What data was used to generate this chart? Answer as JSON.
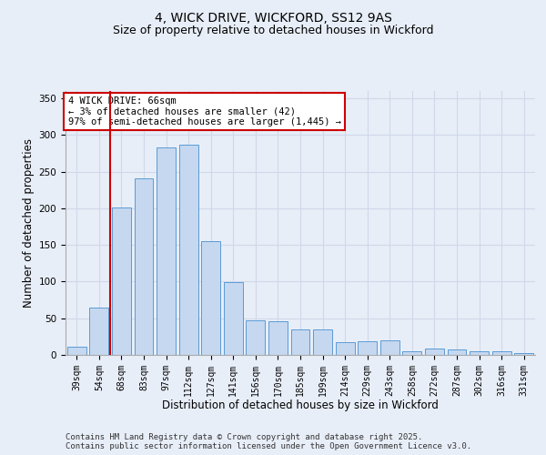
{
  "title_line1": "4, WICK DRIVE, WICKFORD, SS12 9AS",
  "title_line2": "Size of property relative to detached houses in Wickford",
  "xlabel": "Distribution of detached houses by size in Wickford",
  "ylabel": "Number of detached properties",
  "categories": [
    "39sqm",
    "54sqm",
    "68sqm",
    "83sqm",
    "97sqm",
    "112sqm",
    "127sqm",
    "141sqm",
    "156sqm",
    "170sqm",
    "185sqm",
    "199sqm",
    "214sqm",
    "229sqm",
    "243sqm",
    "258sqm",
    "272sqm",
    "287sqm",
    "302sqm",
    "316sqm",
    "331sqm"
  ],
  "values": [
    11,
    65,
    201,
    241,
    283,
    287,
    155,
    99,
    47,
    46,
    35,
    35,
    18,
    19,
    20,
    5,
    9,
    8,
    5,
    5,
    2
  ],
  "bar_color": "#c5d8f0",
  "bar_edge_color": "#5b9bd5",
  "grid_color": "#d0d8e8",
  "background_color": "#e8eef8",
  "vline_color": "#cc0000",
  "annotation_text": "4 WICK DRIVE: 66sqm\n← 3% of detached houses are smaller (42)\n97% of semi-detached houses are larger (1,445) →",
  "annotation_box_color": "#ffffff",
  "annotation_box_edge": "#cc0000",
  "ylim": [
    0,
    360
  ],
  "yticks": [
    0,
    50,
    100,
    150,
    200,
    250,
    300,
    350
  ],
  "footer_line1": "Contains HM Land Registry data © Crown copyright and database right 2025.",
  "footer_line2": "Contains public sector information licensed under the Open Government Licence v3.0.",
  "title_fontsize": 10,
  "subtitle_fontsize": 9,
  "axis_label_fontsize": 8.5,
  "tick_fontsize": 7,
  "annotation_fontsize": 7.5,
  "footer_fontsize": 6.5
}
